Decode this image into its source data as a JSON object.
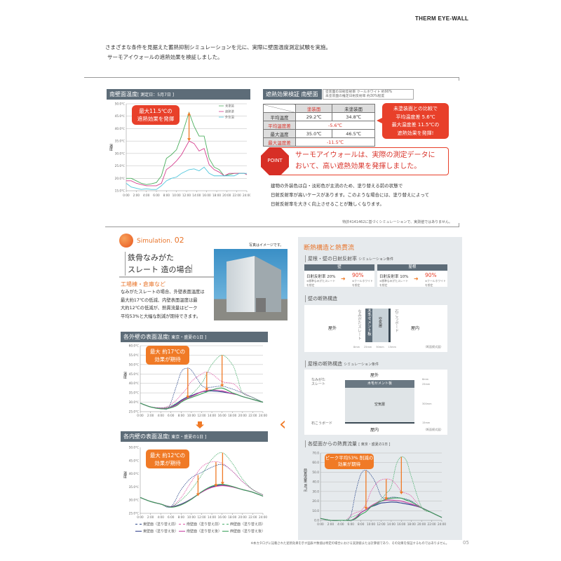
{
  "logo": "THERM EYE-WALL",
  "intro": [
    "さまざまな条件を見据えた蓄熱抑制シミュレーションを元に、実際に壁面温度測定試験を実施。",
    "サーモアイウォールの遮熱効果を検証しました。"
  ],
  "south_chart": {
    "title": "南壁面温度",
    "sub": "[ 測定日：5月7日 ]",
    "callout": [
      "最大11.5℃の",
      "遮熱効果を発揮"
    ],
    "ylabel": "温度"
  },
  "verification": {
    "title": "遮熱効果検証 南壁面",
    "note": [
      "塗装面の日射反射率 クールホワイト 約90%",
      "未塗装面の推定日射反射率 約30%程度"
    ],
    "columns": [
      "塗装面",
      "未塗装面"
    ],
    "rows": [
      {
        "label": "平均温度",
        "values": [
          "29.2℃",
          "34.8℃"
        ]
      },
      {
        "label": "平均温度差",
        "diff": "-5.6℃"
      },
      {
        "label": "最大温度",
        "values": [
          "35.0℃",
          "46.5℃"
        ]
      },
      {
        "label": "最大温度差",
        "diff": "-11.5℃"
      }
    ],
    "callout": [
      "未塗装面との比較で",
      "平均温度差 5.6℃",
      "最大温度差 11.5℃の",
      "遮熱効果を発揮!"
    ]
  },
  "point": {
    "badge": "POINT",
    "text": [
      "サーモアイウォールは、実際の測定データに",
      "おいて、高い遮熱効果を発揮しました。"
    ]
  },
  "body": [
    "建物の外装色は白・淡彩色が主流のため、塗り替える前の状態で",
    "日射反射率が高いケースがあります。このような場合には、塗り替えによって",
    "日射反射率を大きく向上させることが難しくなります。"
  ],
  "sim_note": "特許4141462に基づくシミュレーションで、実測値ではありません。",
  "simulation": {
    "label": "Simulation.",
    "number": "02",
    "title": [
      "鉄骨なみがた",
      "スレート 造の場合"
    ],
    "photo_caption": "写真はイメージです。",
    "subtitle": "工場棟・倉庫など",
    "paragraph": [
      "なみがたスレートの場合、外壁表面温度は",
      "最大約17℃の低減、内壁表面温度は最",
      "大約12℃の低減が、熱貫流量はピーク",
      "平均53%と大幅な削減が期待できます。"
    ]
  },
  "outer_chart": {
    "title": "各外壁の表面温度",
    "sub": "[ 東京・盛夏の1日 ]",
    "callout": [
      "最大 約17℃の",
      "効果が期待"
    ],
    "ylabel": "温度"
  },
  "inner_chart": {
    "title": "各内壁の表面温度",
    "sub": "[ 東京・盛夏の1日 ]",
    "callout": [
      "最大 約12℃の",
      "効果が期待"
    ],
    "ylabel": "温度"
  },
  "panel": {
    "title": "断熱構造と熱貫流",
    "reflect": {
      "title": "屋根・壁の日射反射率",
      "cond": "シミュレーション条件",
      "cards": [
        {
          "head": "壁",
          "from": "日射反射率 20%",
          "from_note": [
            "※標準なみがたスレート",
            "を想定"
          ],
          "to": "90%",
          "to_note": [
            "※クールホワイト",
            "を想定"
          ]
        },
        {
          "head": "屋根",
          "from": "日射反射率 10%",
          "from_note": [
            "※標準なみがたスレート",
            "を想定"
          ],
          "to": "90%",
          "to_note": [
            "※クールホワイト",
            "を想定"
          ]
        }
      ]
    },
    "wall": {
      "title": "壁の断熱構造",
      "outside": "屋外",
      "inside": "屋内",
      "slate": "なみがたスレート",
      "cement": "木毛セメント板",
      "air": "空気層",
      "board": "石こうボード",
      "dims": [
        "8mm",
        "25mm",
        "50mm",
        "15mm"
      ],
      "note": "（断面模式図）"
    },
    "roof": {
      "title": "屋根の断熱構造",
      "cond": "シミュレーション条件",
      "outside": "屋外",
      "inside": "屋内",
      "slate": [
        "なみがた",
        "スレート"
      ],
      "cement": "木毛セメント板",
      "air": "空気層",
      "board": "石こうボード",
      "dims": [
        "6mm",
        "25mm",
        "300mm",
        "15mm"
      ],
      "note": "（断面模式図）"
    },
    "flux": {
      "title": "各壁面からの熱貫流量",
      "sub": "[ 東京・盛夏の1日 ]",
      "callout": [
        "ピーク平均53% 削減の",
        "効果が期待"
      ],
      "ylabel": "熱貫流量 W/㎡"
    }
  },
  "footer": {
    "note": "※本カタログに記載された遮熱効果を示す図表や数値は特定の場合における実測値または計算値であり、その効果を保証するものではありません。",
    "page": "05"
  },
  "colors": {
    "accent": "#f07a26",
    "red": "#e8402a",
    "header": "#5d6c78",
    "panel": "#e6eaed"
  },
  "chart_data": [
    {
      "type": "line",
      "title": "南壁面温度",
      "ylim": [
        15,
        50
      ],
      "xlim": [
        0,
        24
      ],
      "ytick_labels": [
        "15.0℃",
        "20.0℃",
        "25.0℃",
        "30.0℃",
        "35.0℃",
        "40.0℃",
        "45.0℃",
        "50.0℃"
      ],
      "yticks": [
        15,
        20,
        25,
        30,
        35,
        40,
        45,
        50
      ],
      "xtick_labels": [
        "0:00",
        "2:00",
        "4:00",
        "6:00",
        "8:00",
        "10:00",
        "12:00",
        "14:00",
        "16:00",
        "18:00",
        "20:00",
        "22:00",
        "24:00"
      ],
      "xticks": [
        0,
        2,
        4,
        6,
        8,
        10,
        12,
        14,
        16,
        18,
        20,
        22,
        24
      ],
      "legend": "top-right",
      "grid": true,
      "x": [
        0,
        1,
        2,
        3,
        4,
        5,
        6,
        7,
        8,
        9,
        10,
        11,
        12.5,
        13.5,
        14.5,
        15.5,
        16.5,
        17.5,
        18.5,
        19.5,
        20.5,
        21.5,
        22.5,
        23.5,
        24
      ],
      "series": [
        {
          "name": "未塗装",
          "color": "#4caf5f",
          "values": [
            20,
            20,
            19,
            18,
            17.5,
            17.8,
            18.3,
            21,
            28,
            29.5,
            31.5,
            37,
            46.5,
            41,
            37,
            37,
            28,
            24.5,
            23.5,
            21,
            21.5,
            22,
            22,
            22,
            21.5
          ]
        },
        {
          "name": "遮熱塗",
          "color": "#d63f8f",
          "values": [
            19,
            19,
            18,
            17.5,
            17,
            17,
            17,
            18,
            23.5,
            25,
            27,
            29.5,
            35,
            34,
            31,
            32,
            25.5,
            23.5,
            22.5,
            21,
            22,
            22,
            22,
            22,
            21.5
          ]
        },
        {
          "name": "外気温",
          "color": "#4fc6dc",
          "values": [
            18,
            16.5,
            16,
            15.5,
            15.8,
            15.5,
            15.5,
            17,
            19,
            20,
            20.5,
            22,
            23.5,
            23.8,
            23,
            24.5,
            22,
            21,
            21,
            21,
            21,
            21,
            22,
            22,
            22
          ]
        }
      ],
      "arrows": [
        {
          "x": 12.5,
          "from": 46.5,
          "to": 35
        }
      ]
    },
    {
      "type": "line",
      "title": "各外壁の表面温度",
      "ylim": [
        25,
        60
      ],
      "xlim": [
        0,
        24
      ],
      "ytick_labels": [
        "25.0℃",
        "30.0℃",
        "35.0℃",
        "40.0℃",
        "45.0℃",
        "50.0℃",
        "55.0℃",
        "60.0℃"
      ],
      "yticks": [
        25,
        30,
        35,
        40,
        45,
        50,
        55,
        60
      ],
      "xtick_labels": [
        "0:00",
        "2:00",
        "4:00",
        "6:00",
        "8:00",
        "10:00",
        "12:00",
        "14:00",
        "16:00",
        "18:00",
        "20:00",
        "22:00",
        "24:00"
      ],
      "xticks": [
        0,
        2,
        4,
        6,
        8,
        10,
        12,
        14,
        16,
        18,
        20,
        22,
        24
      ],
      "grid": true,
      "x": [
        0,
        2,
        4,
        5.5,
        7,
        8,
        9,
        10,
        12,
        13,
        14,
        16,
        18,
        19,
        20,
        22,
        24
      ],
      "series": [
        {
          "name": "東壁面（塗り替え前）",
          "color": "#2e4a8c",
          "dash": true,
          "values": [
            29.5,
            27.5,
            27,
            27,
            38,
            46,
            48,
            47,
            39,
            38,
            38,
            38.5,
            37,
            36,
            35,
            32.5,
            30
          ]
        },
        {
          "name": "南壁面（塗り替え前）",
          "color": "#e05aa8",
          "dash": true,
          "values": [
            29.5,
            27.5,
            27,
            28,
            31,
            34,
            37,
            41,
            45,
            46,
            45,
            41,
            40,
            38,
            35,
            32.5,
            30
          ]
        },
        {
          "name": "西壁面（塗り替え前）",
          "color": "#4caf6f",
          "dash": true,
          "values": [
            29.5,
            27.5,
            27,
            27.5,
            29.5,
            31,
            32.5,
            34,
            40,
            45,
            50,
            55,
            50,
            43,
            35,
            32.5,
            30
          ]
        },
        {
          "name": "東壁面（塗り替え後）",
          "color": "#2e3f8c",
          "values": [
            29.5,
            27.5,
            26.8,
            27,
            29,
            31,
            32.5,
            33.5,
            35.5,
            35.8,
            36,
            35.5,
            34.5,
            34,
            33,
            31.5,
            30
          ]
        },
        {
          "name": "南壁面（塗り替え後）",
          "color": "#c63fa0",
          "values": [
            29.5,
            27.5,
            26.8,
            27,
            28.5,
            30.5,
            32,
            33,
            35.5,
            36.2,
            36.5,
            36,
            34.5,
            34,
            33,
            31.5,
            30
          ]
        },
        {
          "name": "西壁面（塗り替え後）",
          "color": "#3aa05a",
          "values": [
            29.5,
            27.5,
            26.5,
            26.7,
            28,
            30,
            31.5,
            32.5,
            34.5,
            35.5,
            36.5,
            37.5,
            35,
            34,
            33,
            31.5,
            30
          ]
        }
      ],
      "arrows": [
        {
          "x": 9.3,
          "from": 48,
          "to": 32
        },
        {
          "x": 13,
          "from": 46,
          "to": 36
        },
        {
          "x": 16,
          "from": 55,
          "to": 38
        }
      ]
    },
    {
      "type": "line",
      "title": "各内壁の表面温度",
      "ylim": [
        25,
        50
      ],
      "xlim": [
        0,
        24
      ],
      "ytick_labels": [
        "25.0℃",
        "30.0℃",
        "35.0℃",
        "40.0℃",
        "45.0℃",
        "50.0℃"
      ],
      "yticks": [
        25,
        30,
        35,
        40,
        45,
        50
      ],
      "xtick_labels": [
        "0:00",
        "2:00",
        "4:00",
        "6:00",
        "8:00",
        "10:00",
        "12:00",
        "14:00",
        "16:00",
        "18:00",
        "20:00",
        "22:00",
        "24:00"
      ],
      "xticks": [
        0,
        2,
        4,
        6,
        8,
        10,
        12,
        14,
        16,
        18,
        20,
        22,
        24
      ],
      "grid": false,
      "x": [
        0,
        2,
        4,
        6,
        8,
        10,
        12,
        14,
        16,
        18,
        20,
        22,
        24
      ],
      "series": [
        {
          "name": "東壁面（塗り替え前）",
          "color": "#2e4a8c",
          "dash": true,
          "values": [
            31,
            29.5,
            28.5,
            27.5,
            34,
            38.5,
            40.5,
            42.5,
            43.5,
            41,
            37,
            34,
            32
          ]
        },
        {
          "name": "南壁面（塗り替え前）",
          "color": "#e05aa8",
          "dash": true,
          "values": [
            31,
            29.5,
            28.5,
            27.5,
            31,
            37,
            42.5,
            44.5,
            44,
            41,
            37,
            34,
            32
          ]
        },
        {
          "name": "西壁面（塗り替え前）",
          "color": "#4caf6f",
          "dash": true,
          "values": [
            31,
            29.5,
            28.5,
            27.5,
            30,
            34,
            39.5,
            45.5,
            48,
            44,
            38,
            34,
            32
          ]
        },
        {
          "name": "東壁面（塗り替え後）",
          "color": "#2e3f8c",
          "values": [
            31,
            29.5,
            28.5,
            27.5,
            28.5,
            30.5,
            33,
            35,
            35.7,
            35,
            34,
            33,
            31.5
          ]
        },
        {
          "name": "南壁面（塗り替え後）",
          "color": "#c63fa0",
          "values": [
            31,
            29.5,
            28.5,
            27.4,
            28.3,
            30.4,
            33,
            34.8,
            35.5,
            35,
            34,
            33,
            31.5
          ]
        },
        {
          "name": "西壁面（塗り替え後）",
          "color": "#3aa05a",
          "values": [
            31,
            29.5,
            28.5,
            27.3,
            28.2,
            30.3,
            33.2,
            35.3,
            36,
            35.2,
            34,
            33,
            31.5
          ]
        }
      ],
      "arrows": [
        {
          "x": 11.3,
          "from": 39.5,
          "to": 31.5
        },
        {
          "x": 14.8,
          "from": 44.5,
          "to": 35
        },
        {
          "x": 16.1,
          "from": 48,
          "to": 35.8
        }
      ]
    },
    {
      "type": "line",
      "title": "各壁面からの熱貫流量",
      "ylim": [
        0,
        70
      ],
      "xlim": [
        0,
        24
      ],
      "ytick_labels": [
        "0.0",
        "10.0",
        "20.0",
        "30.0",
        "40.0",
        "50.0",
        "60.0",
        "70.0"
      ],
      "yticks": [
        0,
        10,
        20,
        30,
        40,
        50,
        60,
        70
      ],
      "xtick_labels": [
        "0:00",
        "2:00",
        "4:00",
        "6:00",
        "8:00",
        "10:00",
        "12:00",
        "14:00",
        "16:00",
        "18:00",
        "20:00",
        "22:00",
        "24:00"
      ],
      "xticks": [
        0,
        2,
        4,
        6,
        8,
        10,
        12,
        14,
        16,
        18,
        20,
        22,
        24
      ],
      "grid": true,
      "x": [
        0,
        2,
        4,
        5,
        6,
        7,
        8,
        9,
        10,
        11,
        12,
        13,
        14,
        15,
        16,
        17,
        18,
        20,
        22,
        24
      ],
      "series": [
        {
          "name": "東壁面（塗り替え前）",
          "color": "#2e4a8c",
          "dash": true,
          "values": [
            2,
            0,
            0,
            0,
            5,
            30,
            48,
            52,
            47,
            38,
            25,
            23,
            24,
            24,
            23,
            22,
            20,
            13,
            8,
            3
          ]
        },
        {
          "name": "南壁面（塗り替え前）",
          "color": "#e05aa8",
          "dash": true,
          "values": [
            2,
            0,
            0,
            0,
            5,
            8,
            10,
            17,
            30,
            38,
            42,
            43,
            42,
            37,
            30,
            28,
            25,
            13,
            8,
            3
          ]
        },
        {
          "name": "西壁面（塗り替え前）",
          "color": "#4caf6f",
          "dash": true,
          "values": [
            2,
            0,
            0,
            0,
            3,
            5,
            8,
            11,
            15,
            18,
            22,
            28,
            35,
            58,
            66,
            62,
            45,
            14,
            8,
            3
          ]
        },
        {
          "name": "東壁面（塗り替え後）",
          "color": "#2e3f8c",
          "values": [
            2,
            0,
            0,
            0,
            0,
            2,
            8,
            11,
            14,
            16,
            18,
            18.5,
            19,
            18.8,
            18,
            17,
            16,
            13,
            8,
            3
          ]
        },
        {
          "name": "南壁面（塗り替え後）",
          "color": "#c63fa0",
          "values": [
            2,
            0,
            0,
            0,
            0,
            3,
            8,
            11,
            15,
            18,
            20,
            21,
            21,
            20.5,
            20,
            18.5,
            17,
            13,
            8,
            3
          ]
        },
        {
          "name": "西壁面（塗り替え後）",
          "color": "#3aa05a",
          "values": [
            2,
            0,
            0,
            0,
            0,
            2,
            6,
            9,
            14,
            17,
            20,
            22,
            23,
            23.3,
            23,
            21,
            19,
            13,
            8,
            3
          ]
        }
      ],
      "arrows": [
        {
          "x": 9,
          "from": 52,
          "to": 11
        },
        {
          "x": 13,
          "from": 43,
          "to": 21
        },
        {
          "x": 16,
          "from": 66,
          "to": 27
        }
      ]
    }
  ]
}
